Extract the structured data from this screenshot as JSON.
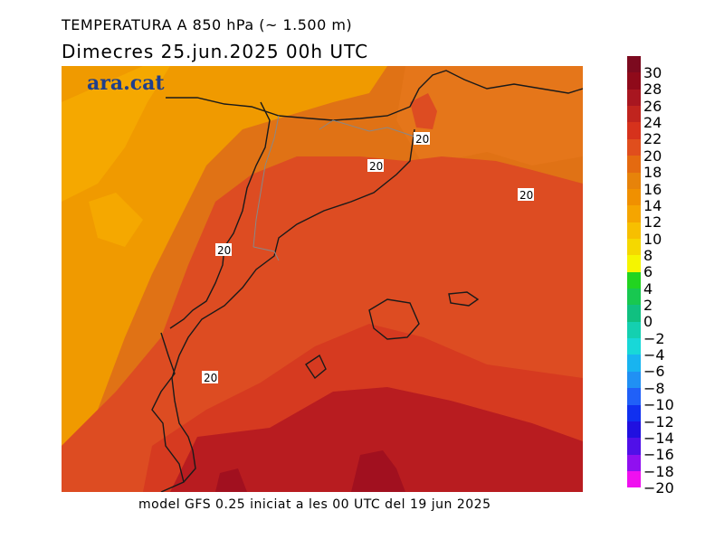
{
  "title": "TEMPERATURA A 850 hPa (~ 1.500 m)",
  "subtitle": "Dimecres  25.jun.2025 00h UTC",
  "footer": "model GFS 0.25 iniciat a les 00 UTC del 19 jun 2025",
  "map": {
    "logo": "ara.cat",
    "contour_labels": [
      "20",
      "20",
      "20",
      "20",
      "20"
    ]
  },
  "legend": {
    "labels": [
      "30",
      "28",
      "26",
      "24",
      "22",
      "20",
      "18",
      "16",
      "14",
      "12",
      "10",
      "8",
      "6",
      "4",
      "2",
      "0",
      "−2",
      "−4",
      "−6",
      "−8",
      "−10",
      "−12",
      "−14",
      "−16",
      "−18",
      "−20"
    ],
    "colors": [
      "#7c0a1f",
      "#8f0a1a",
      "#a81620",
      "#c0241e",
      "#d6321c",
      "#e04e1d",
      "#e46a10",
      "#e7830a",
      "#f09000",
      "#f5a500",
      "#f7bf00",
      "#f5d800",
      "#f5f500",
      "#22d420",
      "#18c850",
      "#10c080",
      "#14d0b0",
      "#18d8d8",
      "#18b4f0",
      "#2090f4",
      "#2060f8",
      "#1030f0",
      "#2010e0",
      "#5010e8",
      "#9010f0",
      "#f010f0"
    ]
  }
}
